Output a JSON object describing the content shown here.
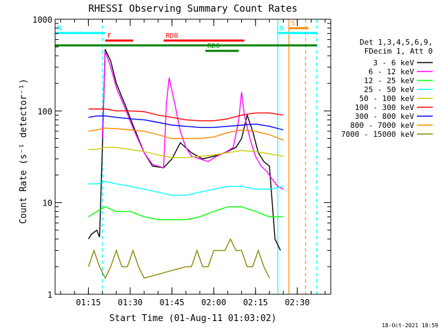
{
  "chart_data": {
    "type": "line",
    "title": "RHESSI Observing Summary Count Rates",
    "xlabel": "Start Time (01-Aug-11 01:03:02)",
    "ylabel": "Count Rate (s⁻¹ detector⁻¹)",
    "yscale": "log",
    "ylim": [
      1,
      1000
    ],
    "xlim_minutes_after_start": [
      0,
      99
    ],
    "x_ticks": [
      "01:15",
      "01:30",
      "01:45",
      "02:00",
      "02:15",
      "02:30"
    ],
    "y_ticks": [
      "1",
      "10",
      "100",
      "1000"
    ],
    "footer_date": "18-Oct-2021 18:59",
    "legend_header": [
      "Det 1,3,4,5,6,9,",
      "FDecim 1, Att 0"
    ],
    "series": [
      {
        "name": "3 - 6 keV",
        "color": "#000000",
        "x": [
          "01:15",
          "01:16",
          "01:18",
          "01:19",
          "01:20",
          "01:21",
          "01:23",
          "01:25",
          "01:28",
          "01:31",
          "01:35",
          "01:38",
          "01:42",
          "01:45",
          "01:48",
          "01:52",
          "01:56",
          "02:00",
          "02:04",
          "02:08",
          "02:10",
          "02:12",
          "02:14",
          "02:16",
          "02:18",
          "02:20",
          "02:22",
          "02:24"
        ],
        "y": [
          4,
          4.5,
          5,
          4.2,
          40,
          470,
          350,
          200,
          120,
          70,
          35,
          25,
          24,
          30,
          45,
          35,
          30,
          32,
          35,
          40,
          50,
          90,
          60,
          35,
          28,
          25,
          4,
          3
        ]
      },
      {
        "name": "6 - 12 keV",
        "color": "#ff00ff",
        "x": [
          "01:20",
          "01:21",
          "01:23",
          "01:25",
          "01:28",
          "01:31",
          "01:35",
          "01:38",
          "01:42",
          "01:43",
          "01:44",
          "01:46",
          "01:48",
          "01:50",
          "01:52",
          "01:55",
          "01:58",
          "02:01",
          "02:04",
          "02:07",
          "02:09",
          "02:10",
          "02:11",
          "02:13",
          "02:15",
          "02:17",
          "02:19",
          "02:21",
          "02:23",
          "02:25"
        ],
        "y": [
          50,
          450,
          300,
          180,
          110,
          65,
          35,
          26,
          24,
          120,
          230,
          120,
          60,
          40,
          32,
          30,
          28,
          32,
          35,
          40,
          80,
          160,
          90,
          50,
          32,
          25,
          22,
          18,
          15,
          14
        ]
      },
      {
        "name": "12 - 25 keV",
        "color": "#00ff00",
        "x": [
          "01:15",
          "01:18",
          "01:21",
          "01:25",
          "01:30",
          "01:35",
          "01:40",
          "01:45",
          "01:50",
          "01:55",
          "02:00",
          "02:05",
          "02:10",
          "02:15",
          "02:20",
          "02:25"
        ],
        "y": [
          7,
          8,
          9,
          8,
          8,
          7,
          6.5,
          6.5,
          6.5,
          7,
          8,
          9,
          9,
          8,
          7,
          7
        ]
      },
      {
        "name": "25 - 50 keV",
        "color": "#00ffff",
        "x": [
          "01:15",
          "01:18",
          "01:21",
          "01:25",
          "01:30",
          "01:35",
          "01:40",
          "01:45",
          "01:50",
          "01:55",
          "02:00",
          "02:05",
          "02:10",
          "02:15",
          "02:20",
          "02:25"
        ],
        "y": [
          16,
          16,
          17,
          16,
          15,
          14,
          13,
          12,
          12,
          13,
          14,
          15,
          15,
          14,
          14,
          15
        ]
      },
      {
        "name": "50 - 100 keV",
        "color": "#cccc00",
        "x": [
          "01:15",
          "01:18",
          "01:21",
          "01:25",
          "01:30",
          "01:35",
          "01:40",
          "01:45",
          "01:50",
          "01:55",
          "02:00",
          "02:05",
          "02:10",
          "02:15",
          "02:20",
          "02:25"
        ],
        "y": [
          38,
          38,
          40,
          40,
          38,
          36,
          33,
          31,
          31,
          32,
          33,
          35,
          37,
          36,
          34,
          32
        ]
      },
      {
        "name": "100 - 300 keV",
        "color": "#ff0000",
        "x": [
          "01:15",
          "01:18",
          "01:21",
          "01:25",
          "01:30",
          "01:35",
          "01:40",
          "01:45",
          "01:50",
          "01:55",
          "02:00",
          "02:05",
          "02:10",
          "02:15",
          "02:20",
          "02:25"
        ],
        "y": [
          105,
          105,
          105,
          100,
          100,
          98,
          90,
          85,
          80,
          78,
          78,
          82,
          90,
          95,
          95,
          90
        ]
      },
      {
        "name": "300 - 800 keV",
        "color": "#0000ff",
        "x": [
          "01:15",
          "01:18",
          "01:21",
          "01:25",
          "01:30",
          "01:35",
          "01:40",
          "01:45",
          "01:50",
          "01:55",
          "02:00",
          "02:05",
          "02:10",
          "02:15",
          "02:20",
          "02:25"
        ],
        "y": [
          85,
          88,
          88,
          85,
          82,
          80,
          75,
          70,
          68,
          66,
          66,
          68,
          70,
          72,
          68,
          62
        ]
      },
      {
        "name": "800 - 7000 keV",
        "color": "#ff8800",
        "x": [
          "01:15",
          "01:18",
          "01:21",
          "01:25",
          "01:30",
          "01:35",
          "01:40",
          "01:45",
          "01:50",
          "01:55",
          "02:00",
          "02:05",
          "02:10",
          "02:15",
          "02:20",
          "02:25"
        ],
        "y": [
          60,
          62,
          65,
          64,
          62,
          60,
          55,
          50,
          50,
          50,
          52,
          58,
          62,
          60,
          55,
          48
        ]
      },
      {
        "name": "7000 - 15000 keV",
        "color": "#888800",
        "x": [
          "01:15",
          "01:17",
          "01:19",
          "01:21",
          "01:23",
          "01:25",
          "01:27",
          "01:29",
          "01:31",
          "01:33",
          "01:35",
          "01:50",
          "01:52",
          "01:54",
          "01:56",
          "01:58",
          "02:00",
          "02:02",
          "02:04",
          "02:06",
          "02:08",
          "02:10",
          "02:12",
          "02:14",
          "02:16",
          "02:18",
          "02:20"
        ],
        "y": [
          2,
          3,
          2,
          1.5,
          2,
          3,
          2,
          2,
          3,
          2,
          1.5,
          2,
          2,
          3,
          2,
          2,
          3,
          3,
          3,
          4,
          3,
          3,
          2,
          2,
          3,
          2,
          1.5
        ]
      }
    ],
    "state_bars": [
      {
        "label": "N",
        "color": "#00ffff",
        "x": [
          "01:03",
          "01:21"
        ],
        "level": "upper"
      },
      {
        "label": "N",
        "color": "#00ffff",
        "x": [
          "02:23",
          "02:37"
        ],
        "level": "upper"
      },
      {
        "label": "F",
        "color": "#ff0000",
        "x": [
          "01:21",
          "01:31"
        ],
        "level": "middle"
      },
      {
        "label": "RD0",
        "color": "#ff0000",
        "x": [
          "01:42",
          "02:11"
        ],
        "level": "middle"
      },
      {
        "label": "",
        "color": "#008000",
        "x": [
          "01:03",
          "02:37"
        ],
        "level": "lower"
      },
      {
        "label": "RD6",
        "color": "#008000",
        "x": [
          "01:57",
          "02:09"
        ],
        "level": "bottom"
      },
      {
        "label": "S",
        "color": "#ff8800",
        "x": [
          "02:27",
          "02:34"
        ],
        "level": "top"
      }
    ],
    "vertical_markers": [
      {
        "x": "01:20",
        "color": "#00ffff",
        "style": "dashed"
      },
      {
        "x": "02:23",
        "color": "#00ffff",
        "style": "solid"
      },
      {
        "x": "02:27",
        "color": "#ff8800",
        "style": "solid"
      },
      {
        "x": "02:33",
        "color": "#ff8800",
        "style": "dashed"
      },
      {
        "x": "02:37",
        "color": "#00ffff",
        "style": "dashed"
      }
    ]
  }
}
